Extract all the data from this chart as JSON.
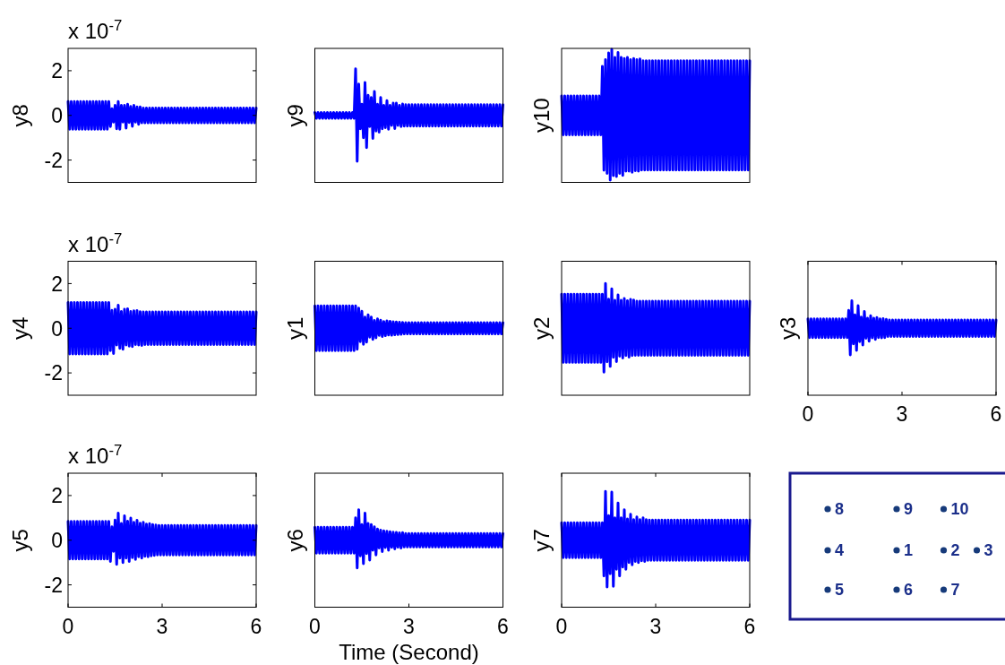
{
  "chart_data": [
    {
      "type": "line",
      "ylabel": "y8",
      "annotations": [
        "x 10$^{-7}$"
      ],
      "xlim": [
        0,
        6
      ],
      "ylim": [
        -3,
        3
      ],
      "yticks": [
        -2,
        0,
        2
      ],
      "tick_labels": "y",
      "color": "#0000ff",
      "x": [
        0,
        0.05,
        0.1,
        0.15,
        0.2,
        0.25,
        0.3,
        0.35,
        0.4,
        0.45,
        0.5,
        0.55,
        0.6,
        0.65,
        0.7,
        0.75,
        0.8,
        0.85,
        0.9,
        0.95,
        1,
        1.05,
        1.1,
        1.15,
        1.2,
        1.25,
        1.3,
        1.35,
        1.4,
        1.45,
        1.5,
        1.55,
        1.6,
        1.65,
        1.7,
        1.75,
        1.8,
        1.85,
        1.9,
        1.95,
        2,
        2.05,
        2.1,
        2.15,
        2.2,
        2.25,
        2.3,
        2.35,
        2.4,
        2.45,
        2.5,
        2.55,
        2.6,
        2.65,
        2.7,
        2.75,
        2.8,
        2.85,
        2.9,
        2.95,
        3,
        3.05,
        3.1,
        3.15,
        3.2,
        3.25,
        3.3,
        3.35,
        3.4,
        3.45,
        3.5,
        3.55,
        3.6,
        3.65,
        3.7,
        3.75,
        3.8,
        3.85,
        3.9,
        3.95,
        4,
        4.05,
        4.1,
        4.15,
        4.2,
        4.25,
        4.3,
        4.35,
        4.4,
        4.45,
        4.5,
        4.55,
        4.6,
        4.65,
        4.7,
        4.75,
        4.8,
        4.85,
        4.9,
        4.95,
        5,
        5.05,
        5.1,
        5.15,
        5.2,
        5.25,
        5.3,
        5.35,
        5.4,
        5.45,
        5.5,
        5.55,
        5.6,
        5.65,
        5.7,
        5.75,
        5.8,
        5.85,
        5.9,
        5.95,
        6
      ],
      "values": [
        0.62,
        -0.62,
        0.62,
        -0.62,
        0.62,
        -0.62,
        0.62,
        -0.62,
        0.62,
        -0.62,
        0.62,
        -0.62,
        0.62,
        -0.62,
        0.62,
        -0.62,
        0.62,
        -0.62,
        0.62,
        -0.62,
        0.62,
        -0.62,
        0.62,
        -0.62,
        0.62,
        -0.62,
        0.62,
        -0.5,
        0.3,
        -0.3,
        0.45,
        -0.6,
        0.62,
        -0.62,
        0.45,
        -0.3,
        0.45,
        -0.57,
        0.5,
        -0.32,
        0.4,
        -0.49,
        0.45,
        -0.3,
        0.38,
        -0.4,
        0.38,
        -0.33,
        0.33,
        -0.33,
        0.33,
        -0.33,
        0.33,
        -0.33,
        0.33,
        -0.33,
        0.33,
        -0.33,
        0.33,
        -0.33,
        0.33,
        -0.33,
        0.33,
        -0.33,
        0.33,
        -0.33,
        0.33,
        -0.33,
        0.33,
        -0.33,
        0.33,
        -0.33,
        0.33,
        -0.33,
        0.33,
        -0.33,
        0.33,
        -0.33,
        0.33,
        -0.33,
        0.33,
        -0.33,
        0.33,
        -0.33,
        0.33,
        -0.33,
        0.33,
        -0.33,
        0.33,
        -0.33,
        0.33,
        -0.33,
        0.33,
        -0.33,
        0.33,
        -0.33,
        0.33,
        -0.33,
        0.33,
        -0.33,
        0.33,
        -0.33,
        0.33,
        -0.33,
        0.33,
        -0.33,
        0.33,
        -0.33,
        0.33,
        -0.33,
        0.33,
        -0.33,
        0.33,
        -0.33,
        0.33,
        -0.33,
        0.33,
        -0.33,
        0.33,
        -0.33,
        0.33
      ]
    },
    {
      "type": "line",
      "ylabel": "y9",
      "xlim": [
        0,
        6
      ],
      "ylim": [
        -3,
        3
      ],
      "tick_labels": false,
      "color": "#0000ff",
      "x": [
        0,
        0.05,
        0.1,
        0.15,
        0.2,
        0.25,
        0.3,
        0.35,
        0.4,
        0.45,
        0.5,
        0.55,
        0.6,
        0.65,
        0.7,
        0.75,
        0.8,
        0.85,
        0.9,
        0.95,
        1,
        1.05,
        1.1,
        1.15,
        1.2,
        1.25,
        1.3,
        1.35,
        1.4,
        1.45,
        1.5,
        1.55,
        1.6,
        1.65,
        1.7,
        1.75,
        1.8,
        1.85,
        1.9,
        1.95,
        2,
        2.05,
        2.1,
        2.15,
        2.2,
        2.25,
        2.3,
        2.35,
        2.4,
        2.45,
        2.5,
        2.55,
        2.6,
        2.65,
        2.7,
        2.75,
        2.8,
        2.85,
        2.9,
        2.95,
        3,
        3.05,
        3.1,
        3.15,
        3.2,
        3.25,
        3.3,
        3.35,
        3.4,
        3.45,
        3.5,
        3.55,
        3.6,
        3.65,
        3.7,
        3.75,
        3.8,
        3.85,
        3.9,
        3.95,
        4,
        4.05,
        4.1,
        4.15,
        4.2,
        4.25,
        4.3,
        4.35,
        4.4,
        4.45,
        4.5,
        4.55,
        4.6,
        4.65,
        4.7,
        4.75,
        4.8,
        4.85,
        4.9,
        4.95,
        5,
        5.05,
        5.1,
        5.15,
        5.2,
        5.25,
        5.3,
        5.35,
        5.4,
        5.45,
        5.5,
        5.55,
        5.6,
        5.65,
        5.7,
        5.75,
        5.8,
        5.85,
        5.9,
        5.95,
        6
      ],
      "values": [
        0.13,
        -0.13,
        0.13,
        -0.13,
        0.13,
        -0.13,
        0.13,
        -0.13,
        0.13,
        -0.13,
        0.13,
        -0.13,
        0.13,
        -0.13,
        0.13,
        -0.13,
        0.13,
        -0.13,
        0.13,
        -0.13,
        0.13,
        -0.13,
        0.13,
        -0.13,
        0.13,
        -0.13,
        2.09,
        -2.06,
        1.4,
        -0.6,
        0.5,
        -1,
        1.47,
        -1.44,
        0.9,
        -0.5,
        0.8,
        -1.03,
        1.07,
        -0.7,
        0.5,
        -0.75,
        0.8,
        -0.6,
        0.45,
        -0.55,
        0.66,
        -0.62,
        0.45,
        -0.45,
        0.55,
        -0.59,
        0.55,
        -0.45,
        0.45,
        -0.5,
        0.51,
        -0.48,
        0.48,
        -0.48,
        0.48,
        -0.48,
        0.48,
        -0.48,
        0.48,
        -0.48,
        0.48,
        -0.48,
        0.48,
        -0.48,
        0.48,
        -0.48,
        0.48,
        -0.48,
        0.48,
        -0.48,
        0.48,
        -0.48,
        0.48,
        -0.48,
        0.48,
        -0.48,
        0.48,
        -0.48,
        0.48,
        -0.48,
        0.48,
        -0.48,
        0.48,
        -0.48,
        0.48,
        -0.48,
        0.48,
        -0.48,
        0.48,
        -0.48,
        0.48,
        -0.48,
        0.48,
        -0.48,
        0.48,
        -0.48,
        0.48,
        -0.48,
        0.48,
        -0.48,
        0.48,
        -0.48,
        0.48,
        -0.48,
        0.48,
        -0.48,
        0.48,
        -0.48,
        0.48,
        -0.48,
        0.48,
        -0.48,
        0.48,
        -0.48,
        0.48
      ]
    },
    {
      "type": "line",
      "ylabel": "y10",
      "xlim": [
        0,
        6
      ],
      "ylim": [
        -3,
        3
      ],
      "tick_labels": false,
      "color": "#0000ff",
      "x": [
        0,
        0.05,
        0.1,
        0.15,
        0.2,
        0.25,
        0.3,
        0.35,
        0.4,
        0.45,
        0.5,
        0.55,
        0.6,
        0.65,
        0.7,
        0.75,
        0.8,
        0.85,
        0.9,
        0.95,
        1,
        1.05,
        1.1,
        1.15,
        1.2,
        1.25,
        1.3,
        1.35,
        1.4,
        1.45,
        1.5,
        1.55,
        1.6,
        1.65,
        1.7,
        1.75,
        1.8,
        1.85,
        1.9,
        1.95,
        2,
        2.05,
        2.1,
        2.15,
        2.2,
        2.25,
        2.3,
        2.35,
        2.4,
        2.45,
        2.5,
        2.55,
        2.6,
        2.65,
        2.7,
        2.75,
        2.8,
        2.85,
        2.9,
        2.95,
        3,
        3.05,
        3.1,
        3.15,
        3.2,
        3.25,
        3.3,
        3.35,
        3.4,
        3.45,
        3.5,
        3.55,
        3.6,
        3.65,
        3.7,
        3.75,
        3.8,
        3.85,
        3.9,
        3.95,
        4,
        4.05,
        4.1,
        4.15,
        4.2,
        4.25,
        4.3,
        4.35,
        4.4,
        4.45,
        4.5,
        4.55,
        4.6,
        4.65,
        4.7,
        4.75,
        4.8,
        4.85,
        4.9,
        4.95,
        5,
        5.05,
        5.1,
        5.15,
        5.2,
        5.25,
        5.3,
        5.35,
        5.4,
        5.45,
        5.5,
        5.55,
        5.6,
        5.65,
        5.7,
        5.75,
        5.8,
        5.85,
        5.9,
        5.95,
        6
      ],
      "values": [
        0.87,
        -0.87,
        0.87,
        -0.87,
        0.87,
        -0.87,
        0.87,
        -0.87,
        0.87,
        -0.87,
        0.87,
        -0.87,
        0.87,
        -0.87,
        0.87,
        -0.87,
        0.87,
        -0.87,
        0.87,
        -0.87,
        0.87,
        -0.87,
        0.87,
        -0.87,
        0.87,
        -0.87,
        2.2,
        -2.46,
        2.5,
        -2.6,
        2.8,
        -2.9,
        2.96,
        -2.7,
        2.6,
        -2.74,
        2.82,
        -2.6,
        2.6,
        -2.69,
        2.55,
        -2.5,
        2.6,
        -2.5,
        2.5,
        -2.55,
        2.55,
        -2.48,
        2.5,
        -2.5,
        2.53,
        -2.45,
        2.45,
        -2.45,
        2.45,
        -2.45,
        2.45,
        -2.45,
        2.45,
        -2.45,
        2.45,
        -2.45,
        2.45,
        -2.45,
        2.45,
        -2.45,
        2.45,
        -2.45,
        2.45,
        -2.45,
        2.45,
        -2.45,
        2.45,
        -2.45,
        2.45,
        -2.45,
        2.45,
        -2.45,
        2.45,
        -2.45,
        2.45,
        -2.45,
        2.45,
        -2.45,
        2.45,
        -2.45,
        2.45,
        -2.45,
        2.45,
        -2.45,
        2.45,
        -2.45,
        2.45,
        -2.45,
        2.45,
        -2.45,
        2.45,
        -2.45,
        2.45,
        -2.45,
        2.45,
        -2.45,
        2.45,
        -2.45,
        2.45,
        -2.45,
        2.45,
        -2.45,
        2.45,
        -2.45,
        2.45,
        -2.45,
        2.45,
        -2.45,
        2.45,
        -2.45,
        2.45,
        -2.45,
        2.45,
        -2.45,
        2.45
      ]
    },
    {
      "type": "line",
      "ylabel": "y4",
      "annotations": [
        "x 10$^{-7}$"
      ],
      "xlim": [
        0,
        6
      ],
      "ylim": [
        -3,
        3
      ],
      "yticks": [
        -2,
        0,
        2
      ],
      "tick_labels": "y",
      "color": "#0000ff",
      "x": [
        0,
        0.05,
        0.1,
        0.15,
        0.2,
        0.25,
        0.3,
        0.35,
        0.4,
        0.45,
        0.5,
        0.55,
        0.6,
        0.65,
        0.7,
        0.75,
        0.8,
        0.85,
        0.9,
        0.95,
        1,
        1.05,
        1.1,
        1.15,
        1.2,
        1.25,
        1.3,
        1.35,
        1.4,
        1.45,
        1.5,
        1.55,
        1.6,
        1.65,
        1.7,
        1.75,
        1.8,
        1.85,
        1.9,
        1.95,
        2,
        2.05,
        2.1,
        2.15,
        2.2,
        2.25,
        2.3,
        2.35,
        2.4,
        2.45,
        2.5,
        2.55,
        2.6,
        2.65,
        2.7,
        2.75,
        2.8,
        2.85,
        2.9,
        2.95,
        3,
        3.05,
        3.1,
        3.15,
        3.2,
        3.25,
        3.3,
        3.35,
        3.4,
        3.45,
        3.5,
        3.55,
        3.6,
        3.65,
        3.7,
        3.75,
        3.8,
        3.85,
        3.9,
        3.95,
        4,
        4.05,
        4.1,
        4.15,
        4.2,
        4.25,
        4.3,
        4.35,
        4.4,
        4.45,
        4.5,
        4.55,
        4.6,
        4.65,
        4.7,
        4.75,
        4.8,
        4.85,
        4.9,
        4.95,
        5,
        5.05,
        5.1,
        5.15,
        5.2,
        5.25,
        5.3,
        5.35,
        5.4,
        5.45,
        5.5,
        5.55,
        5.6,
        5.65,
        5.7,
        5.75,
        5.8,
        5.85,
        5.9,
        5.95,
        6
      ],
      "values": [
        1.15,
        -1.15,
        1.15,
        -1.15,
        1.15,
        -1.15,
        1.15,
        -1.15,
        1.15,
        -1.15,
        1.15,
        -1.15,
        1.15,
        -1.15,
        1.15,
        -1.15,
        1.15,
        -1.15,
        1.15,
        -1.15,
        1.15,
        -1.15,
        1.15,
        -1.15,
        1.15,
        -1.15,
        1.15,
        -1,
        0.8,
        -1.13,
        0.85,
        -0.75,
        1.03,
        -0.9,
        0.75,
        -0.94,
        0.85,
        -0.75,
        0.87,
        -0.8,
        0.75,
        -0.82,
        0.78,
        -0.73,
        0.79,
        -0.75,
        0.74,
        -0.77,
        0.73,
        -0.73,
        0.73,
        -0.73,
        0.73,
        -0.73,
        0.73,
        -0.73,
        0.73,
        -0.73,
        0.73,
        -0.73,
        0.73,
        -0.73,
        0.73,
        -0.73,
        0.73,
        -0.73,
        0.73,
        -0.73,
        0.73,
        -0.73,
        0.73,
        -0.73,
        0.73,
        -0.73,
        0.73,
        -0.73,
        0.73,
        -0.73,
        0.73,
        -0.73,
        0.73,
        -0.73,
        0.73,
        -0.73,
        0.73,
        -0.73,
        0.73,
        -0.73,
        0.73,
        -0.73,
        0.73,
        -0.73,
        0.73,
        -0.73,
        0.73,
        -0.73,
        0.73,
        -0.73,
        0.73,
        -0.73,
        0.73,
        -0.73,
        0.73,
        -0.73,
        0.73,
        -0.73,
        0.73,
        -0.73,
        0.73,
        -0.73,
        0.73,
        -0.73,
        0.73,
        -0.73,
        0.73,
        -0.73,
        0.73,
        -0.73,
        0.73,
        -0.73,
        0.73
      ]
    },
    {
      "type": "line",
      "ylabel": "y1",
      "xlim": [
        0,
        6
      ],
      "ylim": [
        -3,
        3
      ],
      "tick_labels": false,
      "color": "#0000ff",
      "x": [
        0,
        0.05,
        0.1,
        0.15,
        0.2,
        0.25,
        0.3,
        0.35,
        0.4,
        0.45,
        0.5,
        0.55,
        0.6,
        0.65,
        0.7,
        0.75,
        0.8,
        0.85,
        0.9,
        0.95,
        1,
        1.05,
        1.1,
        1.15,
        1.2,
        1.25,
        1.3,
        1.35,
        1.4,
        1.45,
        1.5,
        1.55,
        1.6,
        1.65,
        1.7,
        1.75,
        1.8,
        1.85,
        1.9,
        1.95,
        2,
        2.05,
        2.1,
        2.15,
        2.2,
        2.25,
        2.3,
        2.35,
        2.4,
        2.45,
        2.5,
        2.55,
        2.6,
        2.65,
        2.7,
        2.75,
        2.8,
        2.85,
        2.9,
        2.95,
        3,
        3.05,
        3.1,
        3.15,
        3.2,
        3.25,
        3.3,
        3.35,
        3.4,
        3.45,
        3.5,
        3.55,
        3.6,
        3.65,
        3.7,
        3.75,
        3.8,
        3.85,
        3.9,
        3.95,
        4,
        4.05,
        4.1,
        4.15,
        4.2,
        4.25,
        4.3,
        4.35,
        4.4,
        4.45,
        4.5,
        4.55,
        4.6,
        4.65,
        4.7,
        4.75,
        4.8,
        4.85,
        4.9,
        4.95,
        5,
        5.05,
        5.1,
        5.15,
        5.2,
        5.25,
        5.3,
        5.35,
        5.4,
        5.45,
        5.5,
        5.55,
        5.6,
        5.65,
        5.7,
        5.75,
        5.8,
        5.85,
        5.9,
        5.95,
        6
      ],
      "values": [
        1,
        -1,
        1,
        -1,
        1,
        -1,
        1,
        -1,
        1,
        -1,
        1,
        -1,
        1,
        -1,
        1,
        -1,
        1,
        -1,
        1,
        -1,
        1,
        -1,
        1,
        -1,
        1,
        -1,
        1,
        -0.94,
        0.9,
        -0.6,
        0.76,
        -0.72,
        0.5,
        -0.62,
        0.6,
        -0.4,
        0.5,
        -0.5,
        0.35,
        -0.43,
        0.42,
        -0.32,
        0.36,
        -0.37,
        0.3,
        -0.33,
        0.33,
        -0.3,
        0.31,
        -0.31,
        0.29,
        -0.29,
        0.28,
        -0.28,
        0.27,
        -0.27,
        0.26,
        -0.25,
        0.25,
        -0.25,
        0.25,
        -0.25,
        0.25,
        -0.25,
        0.25,
        -0.25,
        0.25,
        -0.25,
        0.25,
        -0.25,
        0.25,
        -0.25,
        0.25,
        -0.25,
        0.25,
        -0.25,
        0.25,
        -0.25,
        0.25,
        -0.25,
        0.25,
        -0.25,
        0.25,
        -0.25,
        0.25,
        -0.25,
        0.25,
        -0.25,
        0.25,
        -0.25,
        0.25,
        -0.25,
        0.25,
        -0.25,
        0.25,
        -0.25,
        0.25,
        -0.25,
        0.25,
        -0.25,
        0.25,
        -0.25,
        0.25,
        -0.25,
        0.25,
        -0.25,
        0.25,
        -0.25,
        0.25,
        -0.25,
        0.25,
        -0.25,
        0.25,
        -0.25,
        0.25,
        -0.25,
        0.25,
        -0.25,
        0.25,
        -0.25,
        0.25
      ]
    },
    {
      "type": "line",
      "ylabel": "y2",
      "xlim": [
        0,
        6
      ],
      "ylim": [
        -3,
        3
      ],
      "tick_labels": false,
      "color": "#0000ff",
      "x": [
        0,
        0.05,
        0.1,
        0.15,
        0.2,
        0.25,
        0.3,
        0.35,
        0.4,
        0.45,
        0.5,
        0.55,
        0.6,
        0.65,
        0.7,
        0.75,
        0.8,
        0.85,
        0.9,
        0.95,
        1,
        1.05,
        1.1,
        1.15,
        1.2,
        1.25,
        1.3,
        1.35,
        1.4,
        1.45,
        1.5,
        1.55,
        1.6,
        1.65,
        1.7,
        1.75,
        1.8,
        1.85,
        1.9,
        1.95,
        2,
        2.05,
        2.1,
        2.15,
        2.2,
        2.25,
        2.3,
        2.35,
        2.4,
        2.45,
        2.5,
        2.55,
        2.6,
        2.65,
        2.7,
        2.75,
        2.8,
        2.85,
        2.9,
        2.95,
        3,
        3.05,
        3.1,
        3.15,
        3.2,
        3.25,
        3.3,
        3.35,
        3.4,
        3.45,
        3.5,
        3.55,
        3.6,
        3.65,
        3.7,
        3.75,
        3.8,
        3.85,
        3.9,
        3.95,
        4,
        4.05,
        4.1,
        4.15,
        4.2,
        4.25,
        4.3,
        4.35,
        4.4,
        4.45,
        4.5,
        4.55,
        4.6,
        4.65,
        4.7,
        4.75,
        4.8,
        4.85,
        4.9,
        4.95,
        5,
        5.05,
        5.1,
        5.15,
        5.2,
        5.25,
        5.3,
        5.35,
        5.4,
        5.45,
        5.5,
        5.55,
        5.6,
        5.65,
        5.7,
        5.75,
        5.8,
        5.85,
        5.9,
        5.95,
        6
      ],
      "values": [
        1.53,
        -1.53,
        1.53,
        -1.53,
        1.53,
        -1.53,
        1.53,
        -1.53,
        1.53,
        -1.53,
        1.53,
        -1.53,
        1.53,
        -1.53,
        1.53,
        -1.53,
        1.53,
        -1.53,
        1.53,
        -1.53,
        1.53,
        -1.53,
        1.53,
        -1.53,
        1.53,
        -1.53,
        1.53,
        -1.97,
        2.01,
        -1.5,
        1.3,
        -1.71,
        1.77,
        -1.3,
        1.25,
        -1.49,
        1.49,
        -1.25,
        1.25,
        -1.33,
        1.33,
        -1.22,
        1.23,
        -1.29,
        1.29,
        -1.22,
        1.26,
        -1.21,
        1.21,
        -1.21,
        1.21,
        -1.21,
        1.21,
        -1.21,
        1.21,
        -1.21,
        1.21,
        -1.21,
        1.21,
        -1.21,
        1.21,
        -1.21,
        1.21,
        -1.21,
        1.21,
        -1.21,
        1.21,
        -1.21,
        1.21,
        -1.21,
        1.21,
        -1.21,
        1.21,
        -1.21,
        1.21,
        -1.21,
        1.21,
        -1.21,
        1.21,
        -1.21,
        1.21,
        -1.21,
        1.21,
        -1.21,
        1.21,
        -1.21,
        1.21,
        -1.21,
        1.21,
        -1.21,
        1.21,
        -1.21,
        1.21,
        -1.21,
        1.21,
        -1.21,
        1.21,
        -1.21,
        1.21,
        -1.21,
        1.21,
        -1.21,
        1.21,
        -1.21,
        1.21,
        -1.21,
        1.21,
        -1.21,
        1.21,
        -1.21,
        1.21,
        -1.21,
        1.21,
        -1.21,
        1.21,
        -1.21,
        1.21,
        -1.21,
        1.21,
        -1.21,
        1.21
      ]
    },
    {
      "type": "line",
      "ylabel": "y3",
      "xlim": [
        0,
        6
      ],
      "ylim": [
        -3,
        3
      ],
      "xticks": [
        0,
        3,
        6
      ],
      "tick_labels": "x",
      "color": "#0000ff",
      "x": [
        0,
        0.05,
        0.1,
        0.15,
        0.2,
        0.25,
        0.3,
        0.35,
        0.4,
        0.45,
        0.5,
        0.55,
        0.6,
        0.65,
        0.7,
        0.75,
        0.8,
        0.85,
        0.9,
        0.95,
        1,
        1.05,
        1.1,
        1.15,
        1.2,
        1.25,
        1.3,
        1.35,
        1.4,
        1.45,
        1.5,
        1.55,
        1.6,
        1.65,
        1.7,
        1.75,
        1.8,
        1.85,
        1.9,
        1.95,
        2,
        2.05,
        2.1,
        2.15,
        2.2,
        2.25,
        2.3,
        2.35,
        2.4,
        2.45,
        2.5,
        2.55,
        2.6,
        2.65,
        2.7,
        2.75,
        2.8,
        2.85,
        2.9,
        2.95,
        3,
        3.05,
        3.1,
        3.15,
        3.2,
        3.25,
        3.3,
        3.35,
        3.4,
        3.45,
        3.5,
        3.55,
        3.6,
        3.65,
        3.7,
        3.75,
        3.8,
        3.85,
        3.9,
        3.95,
        4,
        4.05,
        4.1,
        4.15,
        4.2,
        4.25,
        4.3,
        4.35,
        4.4,
        4.45,
        4.5,
        4.55,
        4.6,
        4.65,
        4.7,
        4.75,
        4.8,
        4.85,
        4.9,
        4.95,
        5,
        5.05,
        5.1,
        5.15,
        5.2,
        5.25,
        5.3,
        5.35,
        5.4,
        5.45,
        5.5,
        5.55,
        5.6,
        5.65,
        5.7,
        5.75,
        5.8,
        5.85,
        5.9,
        5.95,
        6
      ],
      "values": [
        0.42,
        -0.42,
        0.42,
        -0.42,
        0.42,
        -0.42,
        0.42,
        -0.42,
        0.42,
        -0.42,
        0.42,
        -0.42,
        0.42,
        -0.42,
        0.42,
        -0.42,
        0.42,
        -0.42,
        0.42,
        -0.42,
        0.42,
        -0.42,
        0.42,
        -0.42,
        0.42,
        -0.42,
        0.8,
        -1.19,
        1.23,
        -0.7,
        0.6,
        -0.99,
        1.01,
        -0.6,
        0.5,
        -0.75,
        0.75,
        -0.45,
        0.45,
        -0.58,
        0.56,
        -0.43,
        0.45,
        -0.5,
        0.48,
        -0.42,
        0.42,
        -0.43,
        0.43,
        -0.42,
        0.4,
        -0.37,
        0.37,
        -0.37,
        0.37,
        -0.37,
        0.37,
        -0.37,
        0.37,
        -0.37,
        0.37,
        -0.37,
        0.37,
        -0.37,
        0.37,
        -0.37,
        0.37,
        -0.37,
        0.37,
        -0.37,
        0.37,
        -0.37,
        0.37,
        -0.37,
        0.37,
        -0.37,
        0.37,
        -0.37,
        0.37,
        -0.37,
        0.37,
        -0.37,
        0.37,
        -0.37,
        0.37,
        -0.37,
        0.37,
        -0.37,
        0.37,
        -0.37,
        0.37,
        -0.37,
        0.37,
        -0.37,
        0.37,
        -0.37,
        0.37,
        -0.37,
        0.37,
        -0.37,
        0.37,
        -0.37,
        0.37,
        -0.37,
        0.37,
        -0.37,
        0.37,
        -0.37,
        0.37,
        -0.37,
        0.37,
        -0.37,
        0.37,
        -0.37,
        0.37,
        -0.37,
        0.37,
        -0.37,
        0.37,
        -0.37,
        0.37
      ]
    },
    {
      "type": "line",
      "ylabel": "y5",
      "annotations": [
        "x 10$^{-7}$"
      ],
      "xlim": [
        0,
        6
      ],
      "ylim": [
        -3,
        3
      ],
      "xticks": [
        0,
        3,
        6
      ],
      "yticks": [
        -2,
        0,
        2
      ],
      "color": "#0000ff",
      "x": [
        0,
        0.05,
        0.1,
        0.15,
        0.2,
        0.25,
        0.3,
        0.35,
        0.4,
        0.45,
        0.5,
        0.55,
        0.6,
        0.65,
        0.7,
        0.75,
        0.8,
        0.85,
        0.9,
        0.95,
        1,
        1.05,
        1.1,
        1.15,
        1.2,
        1.25,
        1.3,
        1.35,
        1.4,
        1.45,
        1.5,
        1.55,
        1.6,
        1.65,
        1.7,
        1.75,
        1.8,
        1.85,
        1.9,
        1.95,
        2,
        2.05,
        2.1,
        2.15,
        2.2,
        2.25,
        2.3,
        2.35,
        2.4,
        2.45,
        2.5,
        2.55,
        2.6,
        2.65,
        2.7,
        2.75,
        2.8,
        2.85,
        2.9,
        2.95,
        3,
        3.05,
        3.1,
        3.15,
        3.2,
        3.25,
        3.3,
        3.35,
        3.4,
        3.45,
        3.5,
        3.55,
        3.6,
        3.65,
        3.7,
        3.75,
        3.8,
        3.85,
        3.9,
        3.95,
        4,
        4.05,
        4.1,
        4.15,
        4.2,
        4.25,
        4.3,
        4.35,
        4.4,
        4.45,
        4.5,
        4.55,
        4.6,
        4.65,
        4.7,
        4.75,
        4.8,
        4.85,
        4.9,
        4.95,
        5,
        5.05,
        5.1,
        5.15,
        5.2,
        5.25,
        5.3,
        5.35,
        5.4,
        5.45,
        5.5,
        5.55,
        5.6,
        5.65,
        5.7,
        5.75,
        5.8,
        5.85,
        5.9,
        5.95,
        6
      ],
      "values": [
        0.84,
        -0.84,
        0.84,
        -0.84,
        0.84,
        -0.84,
        0.84,
        -0.84,
        0.84,
        -0.84,
        0.84,
        -0.84,
        0.84,
        -0.84,
        0.84,
        -0.84,
        0.84,
        -0.84,
        0.84,
        -0.84,
        0.84,
        -0.84,
        0.84,
        -0.84,
        0.84,
        -0.84,
        0.84,
        -0.95,
        0.6,
        -0.5,
        0.9,
        -1.08,
        1.21,
        -0.8,
        0.75,
        -1,
        1.09,
        -0.8,
        0.85,
        -0.95,
        0.99,
        -0.78,
        0.8,
        -0.86,
        0.89,
        -0.74,
        0.76,
        -0.8,
        0.8,
        -0.72,
        0.72,
        -0.74,
        0.74,
        -0.7,
        0.7,
        -0.68,
        0.68,
        -0.66,
        0.66,
        -0.66,
        0.66,
        -0.66,
        0.66,
        -0.66,
        0.66,
        -0.66,
        0.66,
        -0.66,
        0.66,
        -0.66,
        0.66,
        -0.66,
        0.66,
        -0.66,
        0.66,
        -0.66,
        0.66,
        -0.66,
        0.66,
        -0.66,
        0.66,
        -0.66,
        0.66,
        -0.66,
        0.66,
        -0.66,
        0.66,
        -0.66,
        0.66,
        -0.66,
        0.66,
        -0.66,
        0.66,
        -0.66,
        0.66,
        -0.66,
        0.66,
        -0.66,
        0.66,
        -0.66,
        0.66,
        -0.66,
        0.66,
        -0.66,
        0.66,
        -0.66,
        0.66,
        -0.66,
        0.66,
        -0.66,
        0.66,
        -0.66,
        0.66,
        -0.66,
        0.66,
        -0.66,
        0.66,
        -0.66,
        0.66,
        -0.66,
        0.66
      ]
    },
    {
      "type": "line",
      "ylabel": "y6",
      "xlabel": "Time (Second)",
      "xlim": [
        0,
        6
      ],
      "ylim": [
        -3,
        3
      ],
      "xticks": [
        0,
        3,
        6
      ],
      "tick_labels": "x",
      "color": "#0000ff",
      "x": [
        0,
        0.05,
        0.1,
        0.15,
        0.2,
        0.25,
        0.3,
        0.35,
        0.4,
        0.45,
        0.5,
        0.55,
        0.6,
        0.65,
        0.7,
        0.75,
        0.8,
        0.85,
        0.9,
        0.95,
        1,
        1.05,
        1.1,
        1.15,
        1.2,
        1.25,
        1.3,
        1.35,
        1.4,
        1.45,
        1.5,
        1.55,
        1.6,
        1.65,
        1.7,
        1.75,
        1.8,
        1.85,
        1.9,
        1.95,
        2,
        2.05,
        2.1,
        2.15,
        2.2,
        2.25,
        2.3,
        2.35,
        2.4,
        2.45,
        2.5,
        2.55,
        2.6,
        2.65,
        2.7,
        2.75,
        2.8,
        2.85,
        2.9,
        2.95,
        3,
        3.05,
        3.1,
        3.15,
        3.2,
        3.25,
        3.3,
        3.35,
        3.4,
        3.45,
        3.5,
        3.55,
        3.6,
        3.65,
        3.7,
        3.75,
        3.8,
        3.85,
        3.9,
        3.95,
        4,
        4.05,
        4.1,
        4.15,
        4.2,
        4.25,
        4.3,
        4.35,
        4.4,
        4.45,
        4.5,
        4.55,
        4.6,
        4.65,
        4.7,
        4.75,
        4.8,
        4.85,
        4.9,
        4.95,
        5,
        5.05,
        5.1,
        5.15,
        5.2,
        5.25,
        5.3,
        5.35,
        5.4,
        5.45,
        5.5,
        5.55,
        5.6,
        5.65,
        5.7,
        5.75,
        5.8,
        5.85,
        5.9,
        5.95,
        6
      ],
      "values": [
        0.58,
        -0.58,
        0.58,
        -0.58,
        0.58,
        -0.58,
        0.58,
        -0.58,
        0.58,
        -0.58,
        0.58,
        -0.58,
        0.58,
        -0.58,
        0.58,
        -0.58,
        0.58,
        -0.58,
        0.58,
        -0.58,
        0.58,
        -0.58,
        0.58,
        -0.58,
        0.58,
        -0.58,
        1,
        -1.24,
        1.36,
        -0.7,
        0.7,
        -1.05,
        1.21,
        -0.6,
        0.75,
        -0.89,
        0.7,
        -0.45,
        0.6,
        -0.66,
        0.5,
        -0.35,
        0.45,
        -0.51,
        0.42,
        -0.33,
        0.4,
        -0.45,
        0.38,
        -0.32,
        0.36,
        -0.39,
        0.35,
        -0.31,
        0.33,
        -0.35,
        0.34,
        -0.3,
        0.3,
        -0.3,
        0.3,
        -0.3,
        0.3,
        -0.3,
        0.3,
        -0.3,
        0.3,
        -0.3,
        0.3,
        -0.3,
        0.3,
        -0.3,
        0.3,
        -0.3,
        0.3,
        -0.3,
        0.3,
        -0.3,
        0.3,
        -0.3,
        0.3,
        -0.3,
        0.3,
        -0.3,
        0.3,
        -0.3,
        0.3,
        -0.3,
        0.3,
        -0.3,
        0.3,
        -0.3,
        0.3,
        -0.3,
        0.3,
        -0.3,
        0.3,
        -0.3,
        0.3,
        -0.3,
        0.3,
        -0.3,
        0.3,
        -0.3,
        0.3,
        -0.3,
        0.3,
        -0.3,
        0.3,
        -0.3,
        0.3,
        -0.3,
        0.3,
        -0.3,
        0.3,
        -0.3,
        0.3,
        -0.3,
        0.3,
        -0.3,
        0.3
      ]
    },
    {
      "type": "line",
      "ylabel": "y7",
      "xlim": [
        0,
        6
      ],
      "ylim": [
        -3,
        3
      ],
      "xticks": [
        0,
        3,
        6
      ],
      "tick_labels": "x",
      "color": "#0000ff",
      "x": [
        0,
        0.05,
        0.1,
        0.15,
        0.2,
        0.25,
        0.3,
        0.35,
        0.4,
        0.45,
        0.5,
        0.55,
        0.6,
        0.65,
        0.7,
        0.75,
        0.8,
        0.85,
        0.9,
        0.95,
        1,
        1.05,
        1.1,
        1.15,
        1.2,
        1.25,
        1.3,
        1.35,
        1.4,
        1.45,
        1.5,
        1.55,
        1.6,
        1.65,
        1.7,
        1.75,
        1.8,
        1.85,
        1.9,
        1.95,
        2,
        2.05,
        2.1,
        2.15,
        2.2,
        2.25,
        2.3,
        2.35,
        2.4,
        2.45,
        2.5,
        2.55,
        2.6,
        2.65,
        2.7,
        2.75,
        2.8,
        2.85,
        2.9,
        2.95,
        3,
        3.05,
        3.1,
        3.15,
        3.2,
        3.25,
        3.3,
        3.35,
        3.4,
        3.45,
        3.5,
        3.55,
        3.6,
        3.65,
        3.7,
        3.75,
        3.8,
        3.85,
        3.9,
        3.95,
        4,
        4.05,
        4.1,
        4.15,
        4.2,
        4.25,
        4.3,
        4.35,
        4.4,
        4.45,
        4.5,
        4.55,
        4.6,
        4.65,
        4.7,
        4.75,
        4.8,
        4.85,
        4.9,
        4.95,
        5,
        5.05,
        5.1,
        5.15,
        5.2,
        5.25,
        5.3,
        5.35,
        5.4,
        5.45,
        5.5,
        5.55,
        5.6,
        5.65,
        5.7,
        5.75,
        5.8,
        5.85,
        5.9,
        5.95,
        6
      ],
      "values": [
        0.78,
        -0.78,
        0.78,
        -0.78,
        0.78,
        -0.78,
        0.78,
        -0.78,
        0.78,
        -0.78,
        0.78,
        -0.78,
        0.78,
        -0.78,
        0.78,
        -0.78,
        0.78,
        -0.78,
        0.78,
        -0.78,
        0.78,
        -0.78,
        0.78,
        -0.78,
        0.78,
        -0.78,
        0.78,
        -1.6,
        2.19,
        -2.1,
        1.1,
        -1.5,
        2.16,
        -2.07,
        1,
        -1.3,
        1.67,
        -1.6,
        1,
        -1.2,
        1.36,
        -1.3,
        0.95,
        -1,
        1.16,
        -1.1,
        0.92,
        -0.95,
        1.04,
        -1,
        0.92,
        -0.92,
        1,
        -0.95,
        0.92,
        -0.9,
        0.9,
        -0.9,
        0.9,
        -0.9,
        0.9,
        -0.9,
        0.9,
        -0.9,
        0.9,
        -0.9,
        0.9,
        -0.9,
        0.9,
        -0.9,
        0.9,
        -0.9,
        0.9,
        -0.9,
        0.9,
        -0.9,
        0.9,
        -0.9,
        0.9,
        -0.9,
        0.9,
        -0.9,
        0.9,
        -0.9,
        0.9,
        -0.9,
        0.9,
        -0.9,
        0.9,
        -0.9,
        0.9,
        -0.9,
        0.9,
        -0.9,
        0.9,
        -0.9,
        0.9,
        -0.9,
        0.9,
        -0.9,
        0.9,
        -0.9,
        0.9,
        -0.9,
        0.9,
        -0.9,
        0.9,
        -0.9,
        0.9,
        -0.9,
        0.9,
        -0.9,
        0.9,
        -0.9,
        0.9,
        -0.9,
        0.9,
        -0.9,
        0.9,
        -0.9,
        0.9
      ]
    },
    {
      "type": "other",
      "annotations": [
        "8",
        "9",
        "10",
        "4",
        "1",
        "2",
        "3",
        "5",
        "6",
        "7"
      ]
    }
  ]
}
